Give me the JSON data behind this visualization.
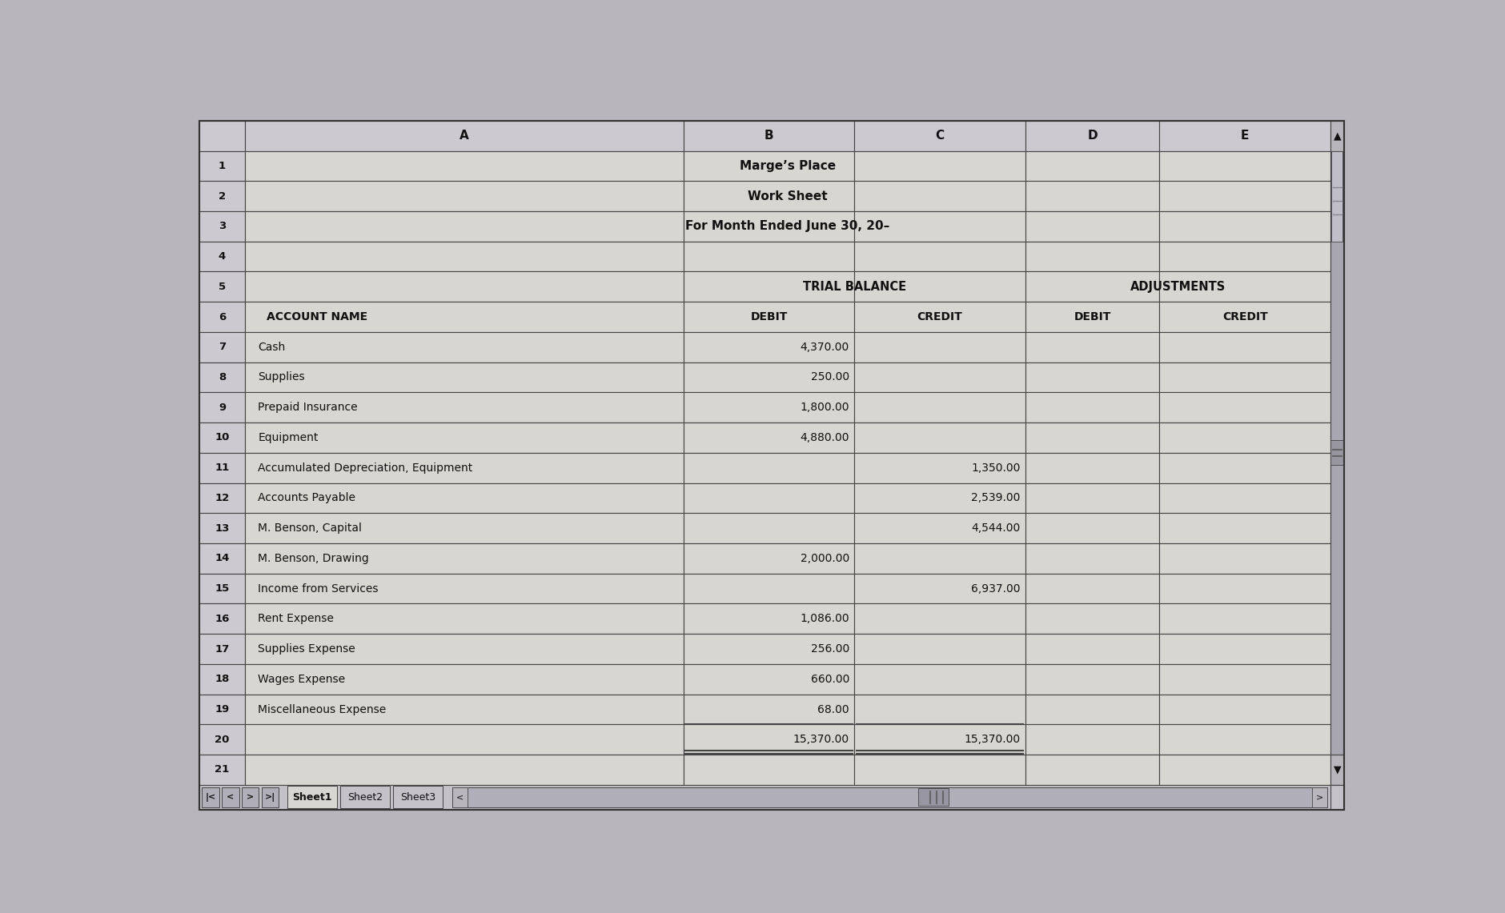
{
  "title1": "Marge’s Place",
  "title2": "Work Sheet",
  "title3": "For Month Ended June 30, 20–",
  "section_tb": "TRIAL BALANCE",
  "section_adj": "ADJUSTMENTS",
  "col_letters": [
    "A",
    "B",
    "C",
    "D",
    "E"
  ],
  "rows": [
    {
      "num": "1",
      "name": "",
      "tb_debit": "",
      "tb_credit": "",
      "adj_debit": "",
      "adj_credit": "",
      "is_title": 1
    },
    {
      "num": "2",
      "name": "",
      "tb_debit": "",
      "tb_credit": "",
      "adj_debit": "",
      "adj_credit": "",
      "is_title": 2
    },
    {
      "num": "3",
      "name": "",
      "tb_debit": "",
      "tb_credit": "",
      "adj_debit": "",
      "adj_credit": "",
      "is_title": 3
    },
    {
      "num": "4",
      "name": "",
      "tb_debit": "",
      "tb_credit": "",
      "adj_debit": "",
      "adj_credit": "",
      "is_title": 0
    },
    {
      "num": "5",
      "name": "",
      "tb_debit": "",
      "tb_credit": "",
      "adj_debit": "",
      "adj_credit": "",
      "is_title": 5
    },
    {
      "num": "6",
      "name": "ACCOUNT NAME",
      "tb_debit": "DEBIT",
      "tb_credit": "CREDIT",
      "adj_debit": "DEBIT",
      "adj_credit": "CREDIT",
      "is_title": 6
    },
    {
      "num": "7",
      "name": "Cash",
      "tb_debit": "4,370.00",
      "tb_credit": "",
      "adj_debit": "",
      "adj_credit": "",
      "is_title": 0
    },
    {
      "num": "8",
      "name": "Supplies",
      "tb_debit": "250.00",
      "tb_credit": "",
      "adj_debit": "",
      "adj_credit": "",
      "is_title": 0
    },
    {
      "num": "9",
      "name": "Prepaid Insurance",
      "tb_debit": "1,800.00",
      "tb_credit": "",
      "adj_debit": "",
      "adj_credit": "",
      "is_title": 0
    },
    {
      "num": "10",
      "name": "Equipment",
      "tb_debit": "4,880.00",
      "tb_credit": "",
      "adj_debit": "",
      "adj_credit": "",
      "is_title": 0
    },
    {
      "num": "11",
      "name": "Accumulated Depreciation, Equipment",
      "tb_debit": "",
      "tb_credit": "1,350.00",
      "adj_debit": "",
      "adj_credit": "",
      "is_title": 0
    },
    {
      "num": "12",
      "name": "Accounts Payable",
      "tb_debit": "",
      "tb_credit": "2,539.00",
      "adj_debit": "",
      "adj_credit": "",
      "is_title": 0
    },
    {
      "num": "13",
      "name": "M. Benson, Capital",
      "tb_debit": "",
      "tb_credit": "4,544.00",
      "adj_debit": "",
      "adj_credit": "",
      "is_title": 0
    },
    {
      "num": "14",
      "name": "M. Benson, Drawing",
      "tb_debit": "2,000.00",
      "tb_credit": "",
      "adj_debit": "",
      "adj_credit": "",
      "is_title": 0
    },
    {
      "num": "15",
      "name": "Income from Services",
      "tb_debit": "",
      "tb_credit": "6,937.00",
      "adj_debit": "",
      "adj_credit": "",
      "is_title": 0
    },
    {
      "num": "16",
      "name": "Rent Expense",
      "tb_debit": "1,086.00",
      "tb_credit": "",
      "adj_debit": "",
      "adj_credit": "",
      "is_title": 0
    },
    {
      "num": "17",
      "name": "Supplies Expense",
      "tb_debit": "256.00",
      "tb_credit": "",
      "adj_debit": "",
      "adj_credit": "",
      "is_title": 0
    },
    {
      "num": "18",
      "name": "Wages Expense",
      "tb_debit": "660.00",
      "tb_credit": "",
      "adj_debit": "",
      "adj_credit": "",
      "is_title": 0
    },
    {
      "num": "19",
      "name": "Miscellaneous Expense",
      "tb_debit": "68.00",
      "tb_credit": "",
      "adj_debit": "",
      "adj_credit": "",
      "is_title": 0
    },
    {
      "num": "20",
      "name": "",
      "tb_debit": "15,370.00",
      "tb_credit": "15,370.00",
      "adj_debit": "",
      "adj_credit": "",
      "is_title": 20
    },
    {
      "num": "21",
      "name": "",
      "tb_debit": "",
      "tb_credit": "",
      "adj_debit": "",
      "adj_credit": "",
      "is_title": 0
    }
  ],
  "bg_col_header": "#cccad0",
  "bg_row_num": "#cccad0",
  "bg_cell": "#d8d6d0",
  "bg_nav": "#c4c2c8",
  "border_color": "#444444",
  "text_color": "#111111",
  "scrollbar_color": "#b8b6bc",
  "tab_active_color": "#d8d6d0",
  "tab_inactive_color": "#c4c2c8"
}
